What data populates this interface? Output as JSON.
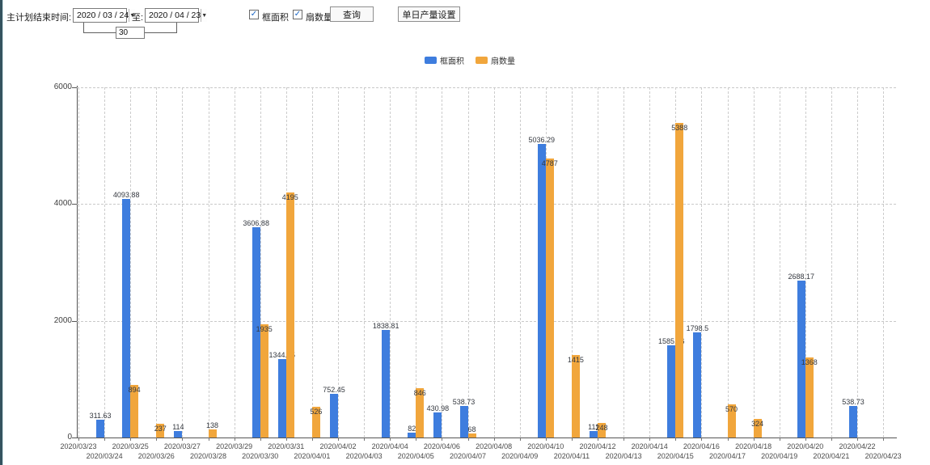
{
  "toolbar": {
    "title_label": "主计划结束时间:",
    "date_from": "2020 / 03 / 24",
    "to_label": "至:",
    "date_to": "2020 / 04 / 23",
    "days_between": "30",
    "checkbox_area_label": "框面积",
    "checkbox_fan_label": "扇数量",
    "query_button": "查询",
    "daily_output_button": "单日产量设置"
  },
  "legend": {
    "items": [
      {
        "label": "框面积",
        "color": "#3E7DDE"
      },
      {
        "label": "扇数量",
        "color": "#F1A63C"
      }
    ]
  },
  "chart_data": {
    "type": "bar",
    "title": "",
    "xlabel": "",
    "ylabel": "",
    "ylim": [
      0,
      6000
    ],
    "yticks": [
      0,
      2000,
      4000,
      6000
    ],
    "grid": true,
    "legend_position": "top",
    "categories": [
      "2020/03/23",
      "2020/03/24",
      "2020/03/25",
      "2020/03/26",
      "2020/03/27",
      "2020/03/28",
      "2020/03/29",
      "2020/03/30",
      "2020/03/31",
      "2020/04/01",
      "2020/04/02",
      "2020/04/03",
      "2020/04/04",
      "2020/04/05",
      "2020/04/06",
      "2020/04/07",
      "2020/04/08",
      "2020/04/09",
      "2020/04/10",
      "2020/04/11",
      "2020/04/12",
      "2020/04/13",
      "2020/04/14",
      "2020/04/15",
      "2020/04/16",
      "2020/04/17",
      "2020/04/18",
      "2020/04/19",
      "2020/04/20",
      "2020/04/21",
      "2020/04/22",
      "2020/04/23"
    ],
    "series": [
      {
        "name": "框面积",
        "color": "#3E7DDE",
        "values": [
          null,
          311.63,
          4093.88,
          null,
          114,
          null,
          null,
          3606.88,
          1344.95,
          null,
          752.45,
          null,
          1838.81,
          82,
          430.98,
          538.73,
          null,
          null,
          5036.29,
          null,
          111,
          null,
          null,
          1585.96,
          1798.5,
          null,
          null,
          null,
          2688.17,
          null,
          538.73,
          null
        ],
        "labels": [
          null,
          "311.63",
          "4093.88",
          null,
          "114",
          null,
          null,
          "3606.88",
          "1344.95",
          null,
          "752.45",
          null,
          "1838.81",
          "82",
          "430.98",
          "538.73",
          null,
          null,
          "5036.29",
          null,
          "111",
          null,
          null,
          "1585.96",
          "1798.5",
          null,
          null,
          null,
          "2688.17",
          null,
          "538.73",
          null
        ]
      },
      {
        "name": "扇数量",
        "color": "#F1A63C",
        "values": [
          null,
          null,
          894,
          237,
          null,
          138,
          null,
          1935,
          4195,
          526,
          null,
          null,
          null,
          846,
          null,
          68,
          null,
          null,
          4787,
          1415,
          248,
          null,
          null,
          5388,
          null,
          570,
          324,
          null,
          1368,
          null,
          null,
          null
        ],
        "labels": [
          null,
          null,
          "894",
          "237",
          null,
          "138",
          null,
          "1935",
          "4195",
          "526",
          null,
          null,
          null,
          "846",
          null,
          "68",
          null,
          null,
          "4787",
          "1415",
          "248",
          null,
          null,
          "5388",
          null,
          "570",
          "324",
          null,
          "1368",
          null,
          null,
          null
        ]
      }
    ]
  }
}
